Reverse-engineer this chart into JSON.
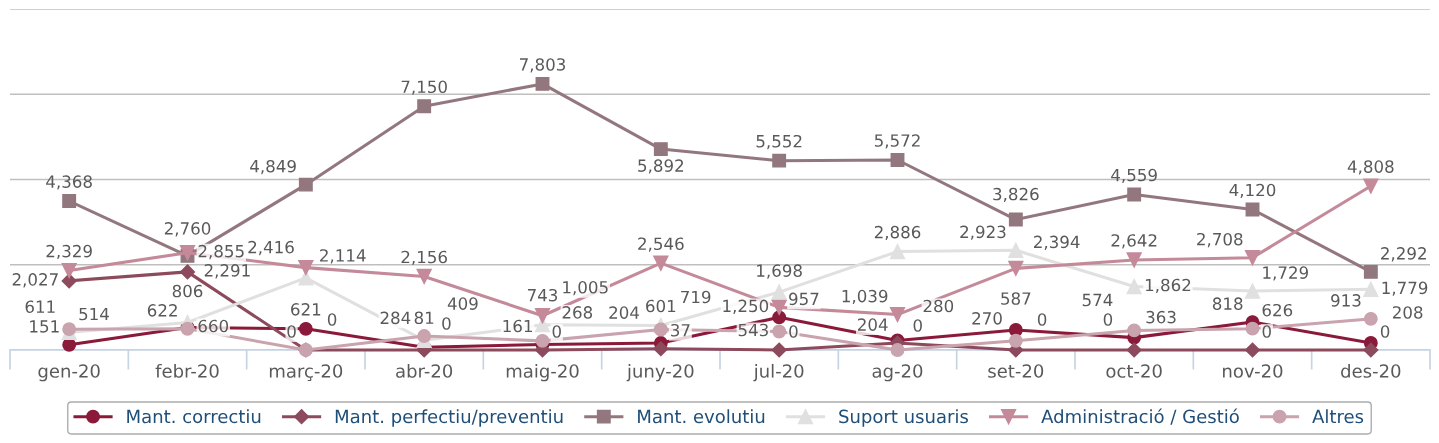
{
  "chart_data": {
    "type": "line",
    "categories": [
      "gen-20",
      "febr-20",
      "març-20",
      "abr-20",
      "maig-20",
      "juny-20",
      "jul-20",
      "ag-20",
      "set-20",
      "oct-20",
      "nov-20",
      "des-20"
    ],
    "series": [
      {
        "name": "Mant. correctiu",
        "color": "#8b1a3a",
        "marker": "circle",
        "values": [
          151,
          660,
          621,
          81,
          161,
          204,
          957,
          280,
          587,
          363,
          818,
          208
        ],
        "value_labels": [
          "151",
          "660",
          "621",
          "81",
          "161",
          "204",
          "957",
          "280",
          "587",
          "363",
          "818",
          "208"
        ]
      },
      {
        "name": "Mant. perfectiu/preventiu",
        "color": "#8c4a5c",
        "marker": "diamond",
        "values": [
          2027,
          2291,
          0,
          0,
          0,
          37,
          0,
          204,
          0,
          0,
          0,
          0
        ],
        "value_labels": [
          "2,027",
          "2,291",
          "0",
          "0",
          "0",
          "37",
          "0",
          "204",
          "0",
          "0",
          "0",
          "0"
        ]
      },
      {
        "name": "Mant. evolutiu",
        "color": "#93777e",
        "marker": "square",
        "values": [
          4368,
          2760,
          4849,
          7150,
          7803,
          5892,
          5552,
          5572,
          3826,
          4559,
          4120,
          2292
        ],
        "value_labels": [
          "4,368",
          "2,760",
          "4,849",
          "7,150",
          "7,803",
          "5,892",
          "5,552",
          "5,572",
          "3,826",
          "4,559",
          "4,120",
          "2,292"
        ]
      },
      {
        "name": "Suport usuaris",
        "color": "#e0e0e0",
        "marker": "triangle",
        "values": [
          514,
          806,
          2114,
          284,
          743,
          719,
          1698,
          2886,
          2923,
          1862,
          1729,
          1779
        ],
        "value_labels": [
          "514",
          "806",
          "2,114",
          "284",
          "743",
          "719",
          "1,698",
          "2,886",
          "2,923",
          "1,862",
          "1,729",
          "1,779"
        ]
      },
      {
        "name": "Administració / Gestió",
        "color": "#c48a9a",
        "marker": "triangle_down",
        "values": [
          2329,
          2855,
          2416,
          2156,
          1005,
          2546,
          1250,
          1039,
          2394,
          2642,
          2708,
          4808
        ],
        "value_labels": [
          "2,329",
          "2,855",
          "2,416",
          "2,156",
          "1,005",
          "2,546",
          "1,250",
          "1,039",
          "2,394",
          "2,642",
          "2,708",
          "4,808"
        ]
      },
      {
        "name": "Altres",
        "color": "#c9a3ad",
        "marker": "circle",
        "values": [
          611,
          622,
          0,
          409,
          268,
          601,
          543,
          0,
          270,
          574,
          626,
          913
        ],
        "value_labels": [
          "611",
          "622",
          "0",
          "409",
          "268",
          "601",
          "543",
          "0",
          "270",
          "574",
          "626",
          "913"
        ]
      }
    ],
    "ylim": [
      0,
      10000
    ],
    "yticks": [
      {
        "value": 0,
        "label": null
      },
      {
        "value": 2500,
        "label": null
      },
      {
        "value": 5000,
        "label": null
      },
      {
        "value": 7500,
        "label": null
      },
      {
        "value": 10000,
        "label": null
      }
    ],
    "tick_labels": "x",
    "grid": "y",
    "legend": "bottom",
    "data_labels": true,
    "line_style": "solid"
  }
}
